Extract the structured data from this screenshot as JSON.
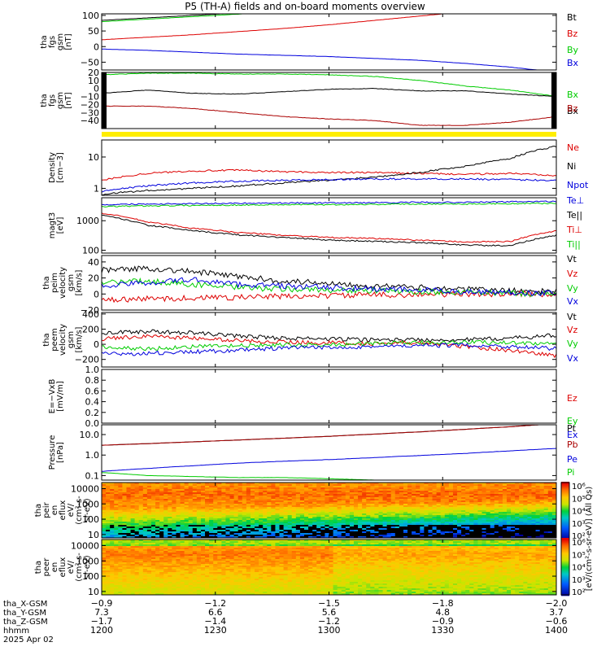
{
  "title": "P5 (TH-A) fields and on-board moments overview",
  "colors": {
    "black": "#000000",
    "red": "#dd0000",
    "green": "#00cc00",
    "blue": "#0000dd",
    "darkred": "#aa0000",
    "yellow": "#ffee00"
  },
  "chart_data": [
    {
      "type": "line",
      "ylabel": [
        "tha",
        "fgs",
        "gsm",
        "[nT]"
      ],
      "yticks": [
        "100",
        "50",
        "0",
        "−50"
      ],
      "series": [
        {
          "name": "Bt",
          "color": "#000000",
          "values": [
            84,
            92,
            100,
            108,
            118,
            128,
            138,
            148,
            158,
            165,
            170
          ]
        },
        {
          "name": "Bz",
          "color": "#dd0000",
          "values": [
            22,
            30,
            38,
            48,
            58,
            70,
            84,
            98,
            112,
            128,
            140
          ]
        },
        {
          "name": "By",
          "color": "#00cc00",
          "values": [
            80,
            88,
            96,
            104,
            114,
            124,
            134,
            144,
            152,
            160,
            165
          ]
        },
        {
          "name": "Bx",
          "color": "#0000dd",
          "values": [
            -8,
            -12,
            -18,
            -24,
            -28,
            -32,
            -38,
            -44,
            -54,
            -66,
            -82
          ]
        }
      ]
    },
    {
      "type": "line",
      "ylabel": [
        "tha",
        "fgs",
        "gsm",
        "[nT]"
      ],
      "yticks": [
        "20",
        "10",
        "0",
        "−10",
        "−20",
        "−30",
        "−40"
      ],
      "series": [
        {
          "name": "Bx",
          "color": "#00cc00",
          "values": [
            17,
            19,
            19,
            18,
            18,
            17,
            15,
            10,
            3,
            -2,
            -10
          ]
        },
        {
          "name": "Bx",
          "color": "#000000",
          "values": [
            -6,
            -2,
            -6,
            -7,
            -4,
            -1,
            0,
            -3,
            -3,
            -7,
            -10
          ]
        },
        {
          "name": "Bz",
          "color": "#aa0000",
          "values": [
            -22,
            -22,
            -25,
            -30,
            -35,
            -38,
            -40,
            -46,
            -46,
            -42,
            -35
          ]
        }
      ]
    },
    {
      "type": "line",
      "ylabel": [
        "Density",
        "[cm−3]"
      ],
      "yticks": [
        "10",
        "1"
      ],
      "series": [
        {
          "name": "Ne",
          "color": "#dd0000",
          "values": [
            1.8,
            3.0,
            3.6,
            3.8,
            3.4,
            3.2,
            3.2,
            3.0,
            2.8,
            3.0,
            2.6
          ]
        },
        {
          "name": "Ni",
          "color": "#000000",
          "values": [
            0.65,
            0.85,
            1.0,
            1.2,
            1.5,
            1.8,
            2.3,
            3.2,
            5.0,
            9.0,
            22
          ]
        },
        {
          "name": "Npot",
          "color": "#0000dd",
          "values": [
            0.8,
            1.2,
            1.5,
            1.7,
            1.8,
            1.9,
            2.0,
            2.0,
            2.0,
            1.9,
            1.8
          ]
        }
      ]
    },
    {
      "type": "line",
      "ylabel": [
        "magt3",
        "[eV]"
      ],
      "yticks": [
        "1000",
        "100"
      ],
      "series": [
        {
          "name": "Te⊥",
          "color": "#0000dd",
          "values": [
            3500,
            3700,
            3800,
            3900,
            4000,
            4000,
            4100,
            4200,
            4200,
            4400,
            4500
          ]
        },
        {
          "name": "Te||",
          "color": "#000000",
          "values": [
            1500,
            700,
            450,
            330,
            270,
            220,
            200,
            180,
            150,
            140,
            320
          ]
        },
        {
          "name": "Ti⊥",
          "color": "#dd0000",
          "values": [
            1800,
            900,
            550,
            400,
            320,
            270,
            250,
            220,
            190,
            200,
            450
          ]
        },
        {
          "name": "Ti||",
          "color": "#00cc00",
          "values": [
            3000,
            3200,
            3300,
            3400,
            3500,
            3500,
            3600,
            3700,
            3700,
            3800,
            3900
          ]
        }
      ]
    },
    {
      "type": "line",
      "ylabel": [
        "tha",
        "peim",
        "velocity",
        "gsm",
        "[km/s]"
      ],
      "yticks": [
        "40",
        "20",
        "0",
        "−20"
      ],
      "series": [
        {
          "name": "Vt",
          "color": "#000000",
          "values": [
            30,
            32,
            28,
            22,
            16,
            14,
            10,
            8,
            6,
            4,
            3
          ]
        },
        {
          "name": "Vz",
          "color": "#dd0000",
          "values": [
            -8,
            -6,
            -5,
            -4,
            -3,
            -2,
            -1,
            -1,
            0,
            0,
            0
          ]
        },
        {
          "name": "Vy",
          "color": "#00cc00",
          "values": [
            14,
            16,
            12,
            8,
            6,
            5,
            4,
            3,
            2,
            1,
            0
          ]
        },
        {
          "name": "Vx",
          "color": "#0000dd",
          "values": [
            10,
            14,
            18,
            12,
            10,
            8,
            6,
            5,
            3,
            2,
            1
          ]
        }
      ]
    },
    {
      "type": "line",
      "ylabel": [
        "tha",
        "peem",
        "velocity",
        "gsm",
        "[km/s]"
      ],
      "yticks": [
        "400",
        "200",
        "0",
        "−200"
      ],
      "series": [
        {
          "name": "Vt",
          "color": "#000000",
          "values": [
            150,
            170,
            150,
            110,
            80,
            70,
            60,
            60,
            60,
            80,
            120
          ]
        },
        {
          "name": "Vz",
          "color": "#dd0000",
          "values": [
            70,
            110,
            80,
            50,
            30,
            20,
            10,
            20,
            -30,
            -80,
            -150
          ]
        },
        {
          "name": "Vy",
          "color": "#00cc00",
          "values": [
            -40,
            -60,
            -30,
            -20,
            -10,
            -10,
            10,
            20,
            30,
            20,
            10
          ]
        },
        {
          "name": "Vx",
          "color": "#0000dd",
          "values": [
            -130,
            -120,
            -100,
            -80,
            -50,
            -40,
            -30,
            -20,
            -10,
            -30,
            -60
          ]
        }
      ]
    },
    {
      "type": "line",
      "ylabel": [
        "E=−VxB",
        "[mV/m]"
      ],
      "yticks": [
        "1.0",
        "0.8",
        "0.6",
        "0.4",
        "0.2",
        "0.0"
      ],
      "series": [
        {
          "name": "Ez",
          "color": "#dd0000",
          "values": []
        },
        {
          "name": "Ey",
          "color": "#00cc00",
          "values": []
        },
        {
          "name": "Ex",
          "color": "#0000dd",
          "values": []
        }
      ]
    },
    {
      "type": "line",
      "ylabel": [
        "Pressure",
        "[nPa]"
      ],
      "yticks": [
        "10.0",
        "1.0",
        "0.1"
      ],
      "series": [
        {
          "name": "Pt",
          "color": "#000000",
          "values": [
            3.0,
            3.6,
            4.4,
            5.4,
            6.6,
            8.2,
            10.5,
            13.5,
            18,
            24,
            34
          ]
        },
        {
          "name": "Pb",
          "color": "#aa0000",
          "values": [
            3.0,
            3.6,
            4.4,
            5.4,
            6.6,
            8.2,
            10.5,
            13.5,
            18,
            24,
            34
          ]
        },
        {
          "name": "Pe",
          "color": "#0000dd",
          "values": [
            0.16,
            0.22,
            0.3,
            0.4,
            0.5,
            0.6,
            0.75,
            0.95,
            1.2,
            1.6,
            2.1
          ]
        },
        {
          "name": "Pi",
          "color": "#00cc00",
          "values": [
            0.14,
            0.1,
            0.09,
            0.08,
            0.08,
            0.07,
            0.06,
            0.05,
            0.045,
            0.045,
            0.05
          ]
        }
      ]
    },
    {
      "type": "heatmap",
      "ylabel": [
        "tha",
        "peir",
        "en",
        "eflux",
        "eV/",
        "(cm²-s-",
        "sr-eV)"
      ],
      "yticks": [
        "10000",
        "1000",
        "100",
        "10"
      ]
    },
    {
      "type": "heatmap",
      "ylabel": [
        "tha",
        "peer",
        "en",
        "eflux",
        "eV/",
        "(cm²-s-",
        "sr-eV)"
      ],
      "yticks": [
        "10000",
        "1000",
        "100",
        "10"
      ]
    }
  ],
  "colorbar": {
    "ticks": [
      "10⁶",
      "10⁵",
      "10⁴",
      "10³",
      "10²",
      "10⁶",
      "10⁵",
      "10⁴",
      "10³",
      "10²"
    ],
    "label": "[eV/(cm²-s-sr-eV)] (All Qs)"
  },
  "xaxis": {
    "rows": [
      {
        "label": "tha_X-GSM",
        "values": [
          "−0.9",
          "−1.2",
          "−1.5",
          "−1.8",
          "−2.0"
        ]
      },
      {
        "label": "tha_Y-GSM",
        "values": [
          "7.3",
          "6.6",
          "5.6",
          "4.8",
          "3.7"
        ]
      },
      {
        "label": "tha_Z-GSM",
        "values": [
          "−1.7",
          "−1.4",
          "−1.2",
          "−0.9",
          "−0.6"
        ]
      },
      {
        "label": "hhmm",
        "values": [
          "1200",
          "1230",
          "1300",
          "1330",
          "1400"
        ]
      }
    ],
    "date": "2025 Apr 02"
  }
}
